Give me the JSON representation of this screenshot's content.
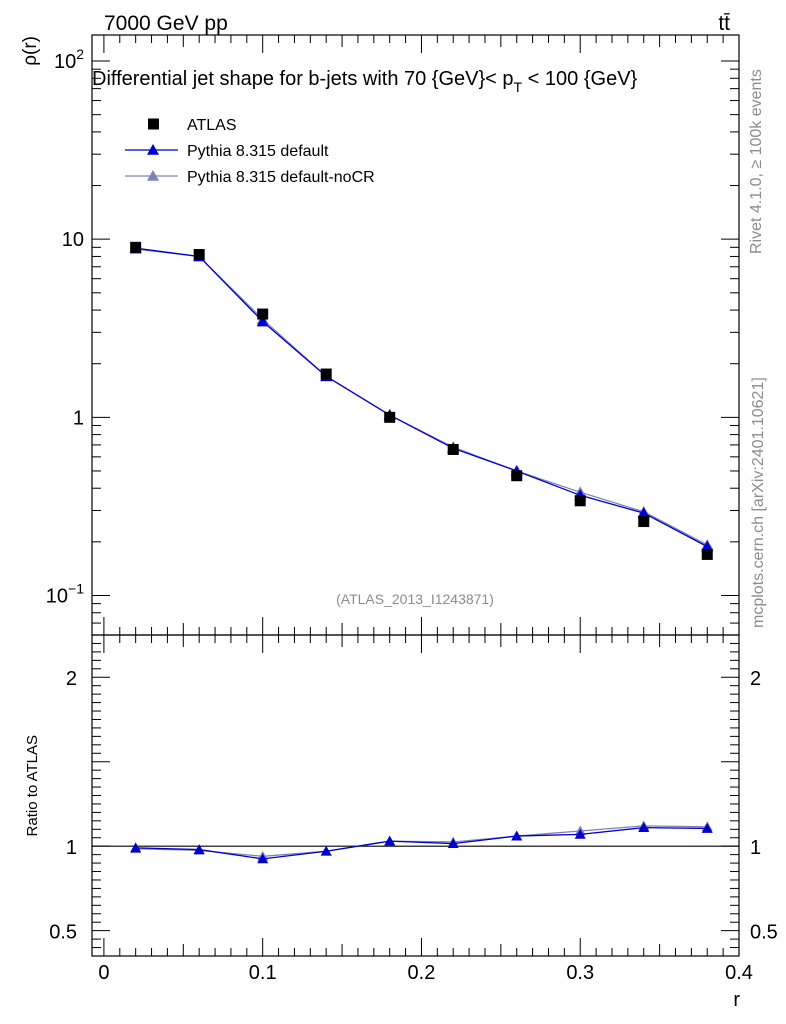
{
  "header": {
    "energy_label": "7000 GeV pp",
    "process_label": "tt̄"
  },
  "side_labels": {
    "rivet": "Rivet 4.1.0, ≥ 100k events",
    "mcplots": "mcplots.cern.ch [arXiv:2401.10621]"
  },
  "chart_data": {
    "type": "line",
    "title": "Differential jet shape for b-jets with 70 {GeV}< p_T < 100 {GeV}",
    "title_parts": {
      "main": "Differential jet shape for b-jets with 70 {GeV}< p",
      "sub": "T",
      "tail": " < 100 {GeV}"
    },
    "analysis_id": "(ATLAS_2013_I1243871)",
    "xlabel": "r",
    "ylabel": "ρ(r)",
    "ratio_ylabel": "Ratio to ATLAS",
    "xlim": [
      -0.0075,
      0.4
    ],
    "ylim": [
      0.06,
      140
    ],
    "yscale": "log",
    "ratio_ylim": [
      0.35,
      2.25
    ],
    "x_tick_labels": [
      "0",
      "0.1",
      "0.2",
      "0.3",
      "0.4"
    ],
    "y_tick_labels": [
      {
        "mantissa": "10",
        "exp": "2"
      },
      {
        "mantissa": "10",
        "exp": ""
      },
      {
        "mantissa": "1",
        "exp": ""
      },
      {
        "mantissa": "10",
        "exp": "−1"
      }
    ],
    "ratio_tick_labels": [
      "2",
      "1",
      "0.5"
    ],
    "x": [
      0.02,
      0.06,
      0.1,
      0.14,
      0.18,
      0.22,
      0.26,
      0.3,
      0.34,
      0.38
    ],
    "series": [
      {
        "name": "ATLAS",
        "marker": "square",
        "color": "#000000",
        "values": [
          9.0,
          8.2,
          3.8,
          1.75,
          1.0,
          0.66,
          0.47,
          0.34,
          0.26,
          0.17
        ]
      },
      {
        "name": "Pythia 8.315 default",
        "marker": "triangle",
        "color": "#0000cc",
        "values": [
          8.9,
          8.0,
          3.45,
          1.7,
          1.03,
          0.67,
          0.5,
          0.365,
          0.29,
          0.188
        ],
        "ratio": [
          0.99,
          0.98,
          0.925,
          0.97,
          1.03,
          1.015,
          1.06,
          1.07,
          1.11,
          1.105
        ]
      },
      {
        "name": "Pythia 8.315 default-noCR",
        "marker": "triangle",
        "color": "#8080b8",
        "values": [
          8.8,
          8.0,
          3.55,
          1.7,
          1.03,
          0.68,
          0.5,
          0.38,
          0.295,
          0.192
        ],
        "ratio": [
          0.985,
          0.975,
          0.94,
          0.97,
          1.03,
          1.025,
          1.06,
          1.09,
          1.12,
          1.115
        ]
      }
    ]
  }
}
